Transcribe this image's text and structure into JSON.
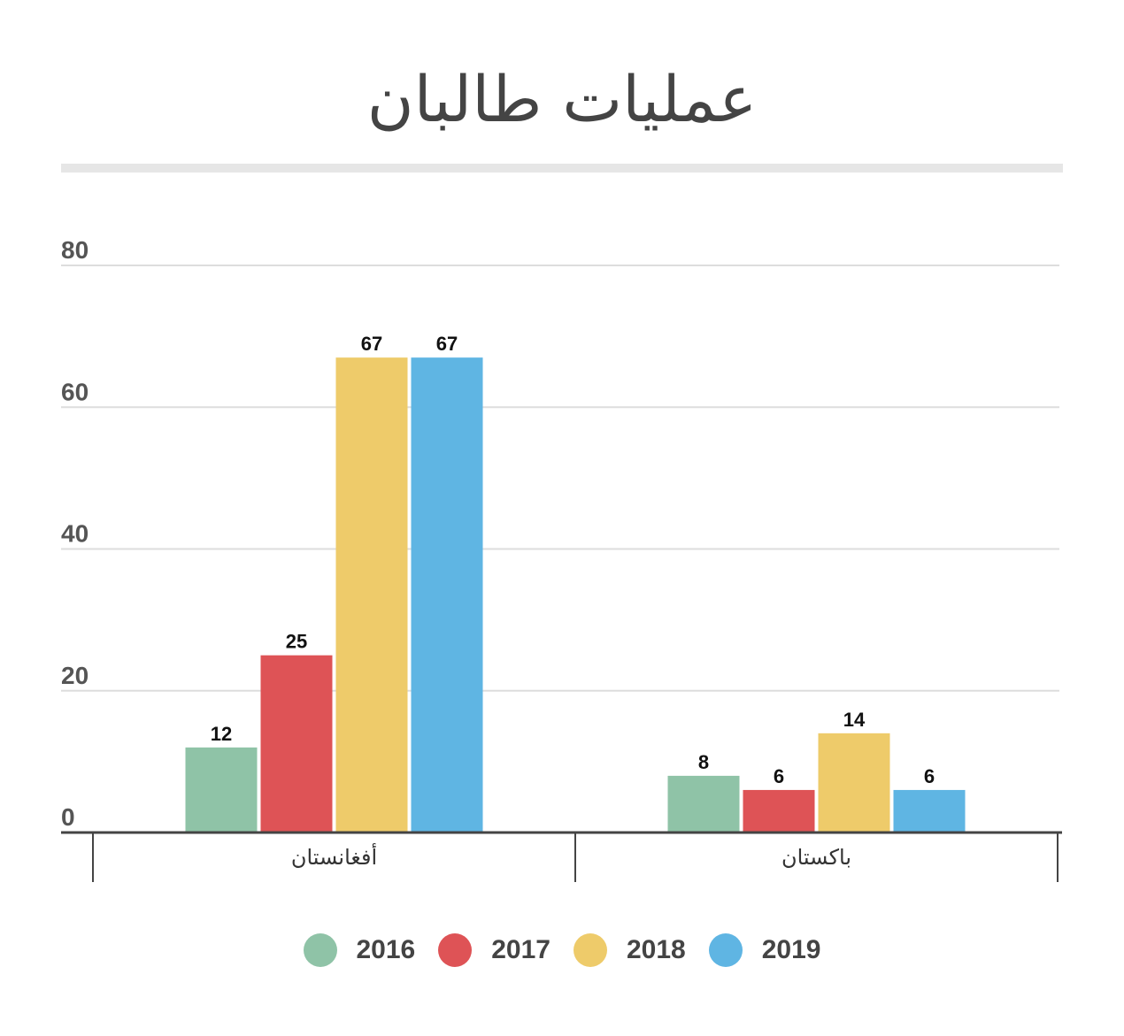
{
  "chart_data": {
    "type": "bar",
    "title": "عمليات طالبان",
    "categories": [
      "أفغانستان",
      "باكستان"
    ],
    "series": [
      {
        "name": "2016",
        "color": "#8fc3a7",
        "values": [
          12,
          8
        ]
      },
      {
        "name": "2017",
        "color": "#de5356",
        "values": [
          25,
          6
        ]
      },
      {
        "name": "2018",
        "color": "#eecb6a",
        "values": [
          67,
          14
        ]
      },
      {
        "name": "2019",
        "color": "#5fb5e3",
        "values": [
          67,
          6
        ]
      }
    ],
    "yticks": [
      "0",
      "20",
      "40",
      "60",
      "80"
    ],
    "ylim": [
      0,
      80
    ],
    "grid": true,
    "legend_position": "bottom",
    "xlabel": "",
    "ylabel": ""
  }
}
